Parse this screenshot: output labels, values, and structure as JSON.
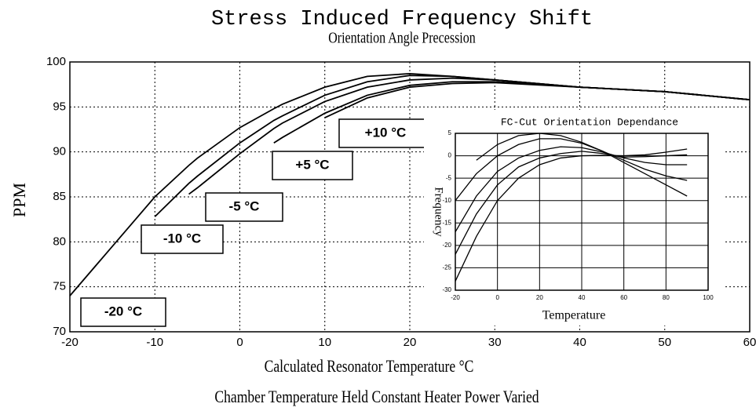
{
  "chart_data": [
    {
      "type": "line",
      "title": "Stress Induced Frequency Shift",
      "subtitle": "Orientation Angle Precession",
      "x_label": "Calculated Resonator Temperature °C",
      "y_label": "PPM",
      "caption": "Chamber Temperature Held Constant Heater Power Varied",
      "x": [
        -20,
        -15,
        -10,
        -6,
        -5,
        0,
        4,
        5,
        10,
        15,
        20,
        25,
        30,
        40,
        50,
        60
      ],
      "series": [
        {
          "name": "-20 °C",
          "color": "#000000",
          "values": [
            74,
            79.5,
            85,
            88.5,
            89.3,
            92.7,
            94.8,
            95.3,
            97.2,
            98.4,
            98.7,
            98.4,
            98,
            97.2,
            96.7,
            95.8
          ]
        },
        {
          "name": "-10 °C",
          "color": "#000000",
          "values": [
            null,
            null,
            82.8,
            86.5,
            87.3,
            91,
            93.5,
            94,
            96.3,
            97.8,
            98.5,
            98.4,
            98,
            97.2,
            96.7,
            95.8
          ]
        },
        {
          "name": "-5 °C",
          "color": "#000000",
          "values": [
            null,
            null,
            null,
            85.3,
            86,
            89.8,
            92.6,
            93.2,
            95.6,
            97.2,
            98,
            98.2,
            98,
            97.2,
            96.7,
            95.8
          ]
        },
        {
          "name": "+5 °C",
          "color": "#000000",
          "values": [
            null,
            null,
            null,
            null,
            null,
            null,
            91,
            91.6,
            94.3,
            96.3,
            97.4,
            97.8,
            97.8,
            97.2,
            96.7,
            95.8
          ]
        },
        {
          "name": "+10 °C",
          "color": "#000000",
          "values": [
            null,
            null,
            null,
            null,
            null,
            null,
            null,
            null,
            93.8,
            96,
            97.2,
            97.6,
            97.7,
            97.2,
            96.7,
            95.8
          ]
        }
      ],
      "xlim": [
        -20,
        60
      ],
      "xticks": [
        -20,
        -10,
        0,
        10,
        20,
        30,
        40,
        50,
        60
      ],
      "ylim": [
        70,
        100
      ],
      "yticks": [
        70,
        75,
        80,
        85,
        90,
        95,
        100
      ],
      "grid": true
    },
    {
      "type": "line",
      "title": "FC-Cut Orientation Dependance",
      "x_label": "Temperature",
      "y_label": "Frequency",
      "x": [
        -20,
        -10,
        0,
        10,
        20,
        30,
        40,
        50,
        60,
        70,
        80,
        90
      ],
      "series": [
        {
          "color": "#000000",
          "values": [
            null,
            -1,
            2.5,
            4.5,
            5,
            4.5,
            3,
            1,
            -1.5,
            -4,
            -6.5,
            -9
          ]
        },
        {
          "color": "#000000",
          "values": [
            -10,
            -4,
            0,
            2.5,
            3.8,
            3.8,
            2.8,
            1,
            -1,
            -3,
            -4.5,
            -5.5
          ]
        },
        {
          "color": "#000000",
          "values": [
            -17,
            -9,
            -3.5,
            -0.5,
            1.2,
            2,
            1.8,
            0.8,
            -0.5,
            -1.5,
            -2,
            -2
          ]
        },
        {
          "color": "#000000",
          "values": [
            -22,
            -13,
            -6.5,
            -2.5,
            -0.5,
            0.5,
            1,
            0.5,
            -0.3,
            -0.2,
            0,
            0.2
          ]
        },
        {
          "color": "#000000",
          "values": [
            -28,
            -18,
            -10,
            -5,
            -2,
            -0.5,
            0,
            0.1,
            0,
            0.2,
            0.8,
            1.5
          ]
        }
      ],
      "xlim": [
        -20,
        100
      ],
      "xticks": [
        -20,
        0,
        20,
        40,
        60,
        80,
        100
      ],
      "ylim": [
        -30,
        5
      ],
      "yticks": [
        -30,
        -25,
        -20,
        -15,
        -10,
        -5,
        0,
        5
      ],
      "grid": true
    }
  ]
}
